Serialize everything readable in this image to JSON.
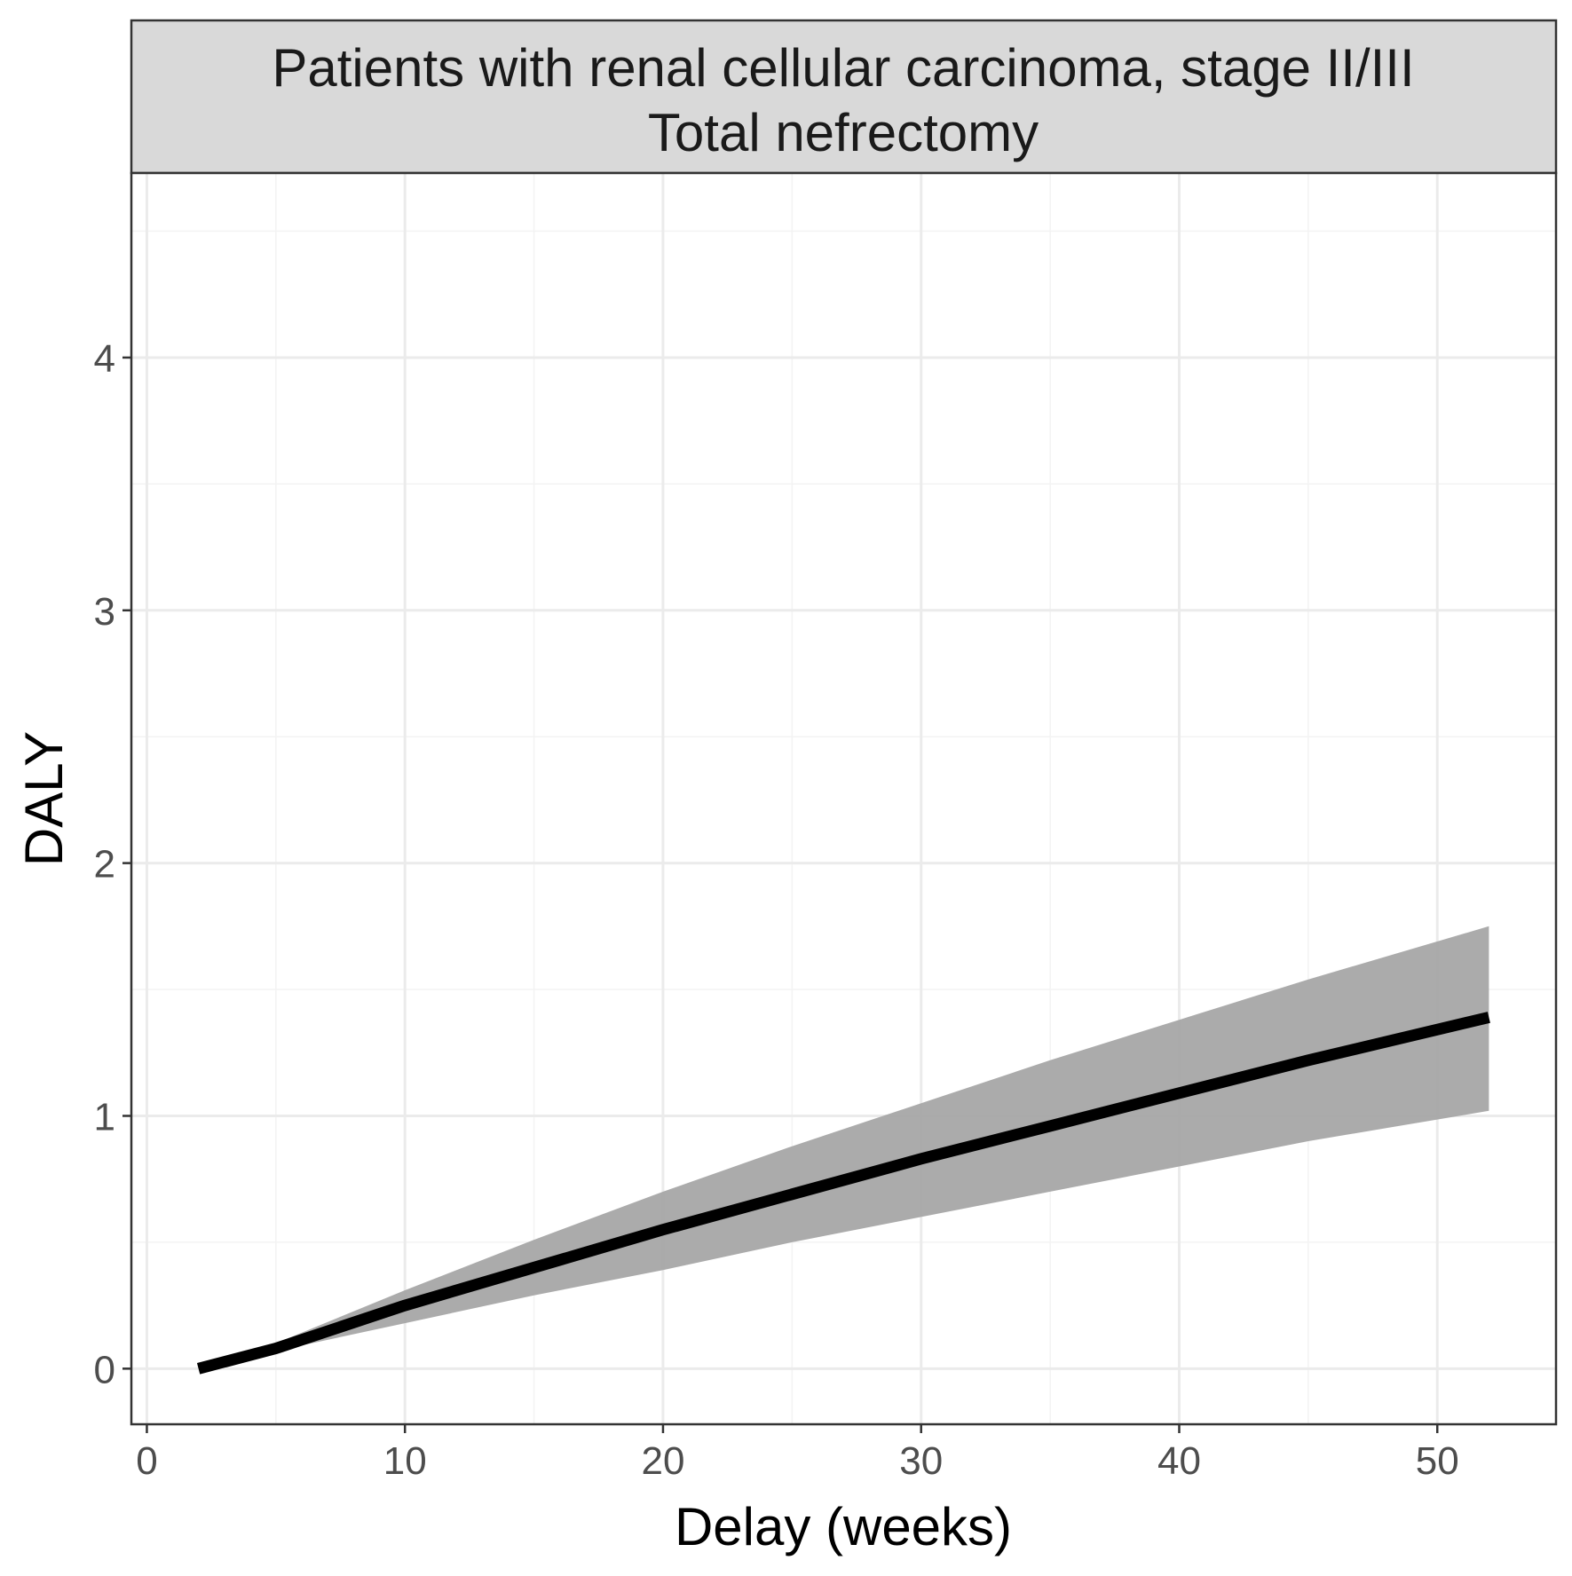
{
  "chart_data": {
    "type": "line",
    "title_lines": [
      "Patients with renal cellular carcinoma, stage II/III",
      "Total nefrectomy"
    ],
    "xlabel": "Delay (weeks)",
    "ylabel": "DALY",
    "xlim": [
      -0.6,
      54.6
    ],
    "ylim": [
      -0.22,
      4.73
    ],
    "x_ticks": [
      0,
      10,
      20,
      30,
      40,
      50
    ],
    "y_ticks": [
      0,
      1,
      2,
      3,
      4
    ],
    "x_minor": [
      5,
      15,
      25,
      35,
      45
    ],
    "y_minor": [
      0.5,
      1.5,
      2.5,
      3.5,
      4.5
    ],
    "grid": true,
    "legend": "none",
    "series": [
      {
        "x": [
          2,
          5,
          10,
          15,
          20,
          25,
          30,
          35,
          40,
          45,
          52
        ],
        "y": [
          0,
          0.08,
          0.25,
          0.4,
          0.55,
          0.69,
          0.83,
          0.96,
          1.09,
          1.22,
          1.39
        ],
        "lower": [
          0,
          0.07,
          0.18,
          0.29,
          0.39,
          0.5,
          0.6,
          0.7,
          0.8,
          0.9,
          1.02
        ],
        "upper": [
          0,
          0.1,
          0.31,
          0.51,
          0.7,
          0.88,
          1.05,
          1.22,
          1.38,
          1.54,
          1.75
        ]
      }
    ],
    "colors": {
      "line": "#000000",
      "ribbon": "#a6a6a6",
      "strip_fill": "#d9d9d9",
      "grid_major": "#ebebeb",
      "grid_minor": "#f3f3f3",
      "panel_border": "#333333"
    }
  }
}
